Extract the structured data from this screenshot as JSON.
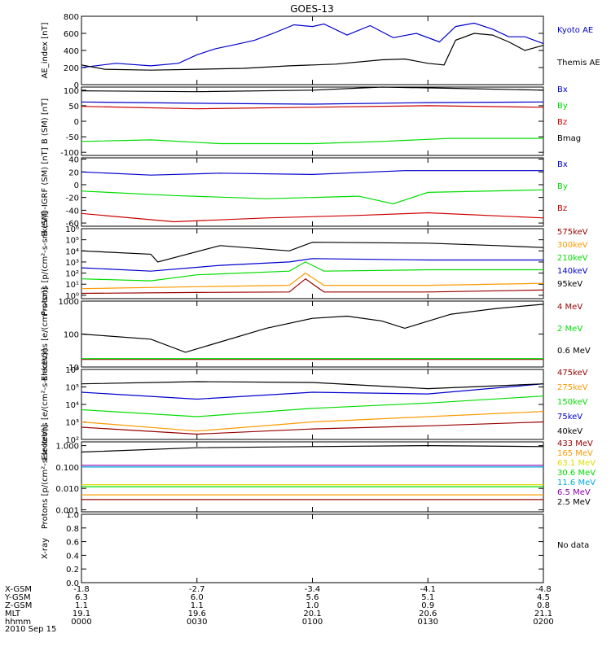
{
  "title": "GOES-13",
  "date_label": "2010 Sep 15",
  "time_axis": {
    "rows": [
      {
        "label": "X-GSM",
        "values": [
          "-1.8",
          "-2.7",
          "-3.4",
          "-4.1",
          "-4.8"
        ]
      },
      {
        "label": "Y-GSM",
        "values": [
          "6.3",
          "6.0",
          "5.6",
          "5.1",
          "4.5"
        ]
      },
      {
        "label": "Z-GSM",
        "values": [
          "1.1",
          "1.1",
          "1.0",
          "0.9",
          "0.8"
        ]
      },
      {
        "label": "MLT",
        "values": [
          "19.1",
          "19.6",
          "20.1",
          "20.6",
          "21.1"
        ]
      },
      {
        "label": "hhmm",
        "values": [
          "0000",
          "0030",
          "0100",
          "0130",
          "0200"
        ]
      }
    ]
  },
  "colors": {
    "black": "#000000",
    "blue": "#0000cc",
    "green": "#00dd00",
    "red": "#cc0000",
    "darkred": "#990000",
    "orange": "#ff9900",
    "yellow": "#dddd00",
    "cyan": "#00aadd",
    "purple": "#8800aa"
  },
  "chart_data": [
    {
      "type": "line",
      "ylabel": "AE_index [nT]",
      "ylim": [
        0,
        800
      ],
      "ticks": [
        "0",
        "200",
        "400",
        "600",
        "800"
      ],
      "tick_values": [
        0,
        200,
        400,
        600,
        800
      ],
      "series": [
        {
          "name": "Kyoto AE",
          "color": "blue",
          "x": [
            0,
            0.15,
            0.3,
            0.42,
            0.5,
            0.58,
            0.67,
            0.75,
            0.83,
            0.92,
            1.0,
            1.05,
            1.15,
            1.25,
            1.35,
            1.45,
            1.55,
            1.62,
            1.7,
            1.78,
            1.85,
            1.92,
            2.0
          ],
          "y": [
            200,
            250,
            220,
            250,
            350,
            420,
            470,
            520,
            600,
            700,
            680,
            710,
            580,
            690,
            550,
            600,
            500,
            680,
            720,
            650,
            560,
            560,
            480
          ]
        },
        {
          "name": "Themis AE",
          "color": "black",
          "x": [
            0,
            0.1,
            0.3,
            0.5,
            0.7,
            0.9,
            1.1,
            1.3,
            1.4,
            1.5,
            1.57,
            1.62,
            1.7,
            1.78,
            1.85,
            1.92,
            2.0
          ],
          "y": [
            230,
            180,
            170,
            180,
            190,
            220,
            240,
            290,
            300,
            250,
            230,
            520,
            600,
            580,
            500,
            400,
            460
          ]
        }
      ]
    },
    {
      "type": "line",
      "ylabel": "B (SM) [nT]",
      "ylim": [
        -110,
        110
      ],
      "ticks": [
        "100",
        "50",
        "0",
        "-50",
        "-100"
      ],
      "tick_values": [
        100,
        50,
        0,
        -50,
        -100
      ],
      "series": [
        {
          "name": "Bx",
          "color": "blue",
          "x": [
            0,
            0.5,
            1.0,
            1.5,
            2.0
          ],
          "y": [
            62,
            58,
            55,
            60,
            62
          ]
        },
        {
          "name": "By",
          "color": "green",
          "x": [
            0,
            0.3,
            0.6,
            1.0,
            1.3,
            1.6,
            2.0
          ],
          "y": [
            -65,
            -60,
            -72,
            -72,
            -65,
            -55,
            -55
          ]
        },
        {
          "name": "Bz",
          "color": "red",
          "x": [
            0,
            0.5,
            1.0,
            1.5,
            2.0
          ],
          "y": [
            48,
            40,
            45,
            50,
            45
          ]
        },
        {
          "name": "Bmag",
          "color": "black",
          "x": [
            0,
            0.5,
            1.0,
            1.3,
            1.6,
            2.0
          ],
          "y": [
            98,
            95,
            100,
            110,
            106,
            100
          ]
        }
      ]
    },
    {
      "type": "line",
      "ylabel": "B (SM)-IGRF (SM) [nT]",
      "ylim": [
        -65,
        42
      ],
      "ticks": [
        "40",
        "20",
        "0",
        "-20",
        "-40",
        "-60"
      ],
      "tick_values": [
        40,
        20,
        0,
        -20,
        -40,
        -60
      ],
      "series": [
        {
          "name": "Bx",
          "color": "blue",
          "x": [
            0,
            0.3,
            0.6,
            1.0,
            1.4,
            2.0
          ],
          "y": [
            20,
            15,
            18,
            16,
            22,
            22
          ]
        },
        {
          "name": "By",
          "color": "green",
          "x": [
            0,
            0.4,
            0.8,
            1.2,
            1.35,
            1.5,
            2.0
          ],
          "y": [
            -10,
            -17,
            -22,
            -18,
            -30,
            -12,
            -8
          ]
        },
        {
          "name": "Bz",
          "color": "red",
          "x": [
            0,
            0.4,
            0.8,
            1.2,
            1.5,
            2.0
          ],
          "y": [
            -45,
            -58,
            -52,
            -48,
            -44,
            -52
          ]
        }
      ]
    },
    {
      "type": "line",
      "ylabel": "Protons [p/(cm²-s-sr-keV)]",
      "log": true,
      "ylim": [
        0.5,
        1000000
      ],
      "ticks": [
        "10⁰",
        "10¹",
        "10²",
        "10³",
        "10⁴",
        "10⁵",
        "10⁶"
      ],
      "tick_values": [
        1,
        10,
        100,
        1000,
        10000,
        100000,
        1000000
      ],
      "series": [
        {
          "name": "575keV",
          "color": "darkred",
          "x": [
            0,
            0.5,
            0.9,
            0.97,
            1.05,
            1.5,
            2.0
          ],
          "y": [
            1.5,
            1.8,
            2,
            30,
            2,
            2,
            3
          ]
        },
        {
          "name": "300keV",
          "color": "orange",
          "x": [
            0,
            0.5,
            0.9,
            0.97,
            1.05,
            1.5,
            2.0
          ],
          "y": [
            4,
            6,
            8,
            100,
            8,
            8,
            12
          ]
        },
        {
          "name": "210keV",
          "color": "green",
          "x": [
            0,
            0.3,
            0.5,
            0.9,
            0.97,
            1.05,
            1.5,
            2.0
          ],
          "y": [
            30,
            20,
            70,
            150,
            1000,
            150,
            200,
            200
          ]
        },
        {
          "name": "140keV",
          "color": "blue",
          "x": [
            0,
            0.3,
            0.6,
            0.9,
            1.0,
            1.5,
            2.0
          ],
          "y": [
            300,
            150,
            500,
            1000,
            2000,
            1500,
            1500
          ]
        },
        {
          "name": "95keV",
          "color": "black",
          "x": [
            0,
            0.3,
            0.33,
            0.6,
            0.9,
            1.0,
            1.5,
            1.8,
            2.0
          ],
          "y": [
            10000,
            5000,
            1000,
            30000,
            10000,
            60000,
            50000,
            30000,
            20000
          ]
        }
      ]
    },
    {
      "type": "line",
      "ylabel": "Electrons [e/(cm²-s-sr)]",
      "log": true,
      "ylim": [
        10,
        1000
      ],
      "ticks": [
        "10",
        "100",
        "1000"
      ],
      "tick_values": [
        10,
        100,
        1000
      ],
      "series": [
        {
          "name": "4 MeV",
          "color": "darkred",
          "x": [
            0,
            1.0,
            2.0
          ],
          "y": [
            17,
            17,
            17
          ]
        },
        {
          "name": "2 MeV",
          "color": "green",
          "x": [
            0,
            1.0,
            2.0
          ],
          "y": [
            18,
            18,
            18
          ]
        },
        {
          "name": "0.6 MeV",
          "color": "black",
          "x": [
            0,
            0.3,
            0.45,
            0.55,
            0.8,
            1.0,
            1.15,
            1.3,
            1.4,
            1.6,
            1.8,
            2.0
          ],
          "y": [
            100,
            70,
            28,
            45,
            150,
            300,
            350,
            250,
            150,
            400,
            600,
            800
          ]
        }
      ]
    },
    {
      "type": "line",
      "ylabel": "Electrons [e/(cm²-s-sr-keV)]",
      "log": true,
      "ylim": [
        100,
        1000000
      ],
      "ticks": [
        "10²",
        "10³",
        "10⁴",
        "10⁵",
        "10⁶"
      ],
      "tick_values": [
        100,
        1000,
        10000,
        100000,
        1000000
      ],
      "series": [
        {
          "name": "475keV",
          "color": "darkred",
          "x": [
            0,
            0.5,
            1.0,
            1.5,
            2.0
          ],
          "y": [
            500,
            200,
            400,
            600,
            1000
          ]
        },
        {
          "name": "275keV",
          "color": "orange",
          "x": [
            0,
            0.5,
            1.0,
            1.5,
            2.0
          ],
          "y": [
            1000,
            300,
            1000,
            2000,
            4000
          ]
        },
        {
          "name": "150keV",
          "color": "green",
          "x": [
            0,
            0.5,
            1.0,
            1.5,
            2.0
          ],
          "y": [
            5000,
            2000,
            6000,
            12000,
            30000
          ]
        },
        {
          "name": "75keV",
          "color": "blue",
          "x": [
            0,
            0.5,
            1.0,
            1.5,
            2.0
          ],
          "y": [
            50000,
            20000,
            50000,
            40000,
            150000
          ]
        },
        {
          "name": "40keV",
          "color": "black",
          "x": [
            0,
            0.5,
            1.0,
            1.5,
            2.0
          ],
          "y": [
            150000,
            200000,
            180000,
            80000,
            150000
          ]
        }
      ]
    },
    {
      "type": "line",
      "ylabel": "Protons [p/(cm²-s-sr-keV)]",
      "log": true,
      "ylim": [
        0.0008,
        1.5
      ],
      "ticks": [
        "0.001",
        "0.010",
        "0.100",
        "1.000"
      ],
      "tick_values": [
        0.001,
        0.01,
        0.1,
        1
      ],
      "series": [
        {
          "name": "433 MeV",
          "color": "darkred",
          "x": [
            0,
            2.0
          ],
          "y": [
            0.003,
            0.003
          ]
        },
        {
          "name": "165 MeV",
          "color": "orange",
          "x": [
            0,
            2.0
          ],
          "y": [
            0.005,
            0.005
          ]
        },
        {
          "name": "63.1 MeV",
          "color": "yellow",
          "x": [
            0,
            2.0
          ],
          "y": [
            0.015,
            0.015
          ]
        },
        {
          "name": "30.6 MeV",
          "color": "green",
          "x": [
            0,
            2.0
          ],
          "y": [
            0.012,
            0.012
          ]
        },
        {
          "name": "11.6 MeV",
          "color": "cyan",
          "x": [
            0,
            2.0
          ],
          "y": [
            0.1,
            0.1
          ]
        },
        {
          "name": "6.5 MeV",
          "color": "purple",
          "x": [
            0,
            2.0
          ],
          "y": [
            0.12,
            0.12
          ]
        },
        {
          "name": "2.5 MeV",
          "color": "black",
          "x": [
            0,
            0.5,
            1.0,
            1.5,
            2.0
          ],
          "y": [
            0.5,
            0.8,
            0.9,
            1.0,
            0.9
          ]
        }
      ]
    },
    {
      "type": "line",
      "ylabel": "X-ray",
      "ylim": [
        0,
        1
      ],
      "ticks": [
        "0.0",
        "0.2",
        "0.4",
        "0.6",
        "0.8",
        "1.0"
      ],
      "tick_values": [
        0,
        0.2,
        0.4,
        0.6,
        0.8,
        1.0
      ],
      "series": [],
      "note": "No data"
    }
  ]
}
